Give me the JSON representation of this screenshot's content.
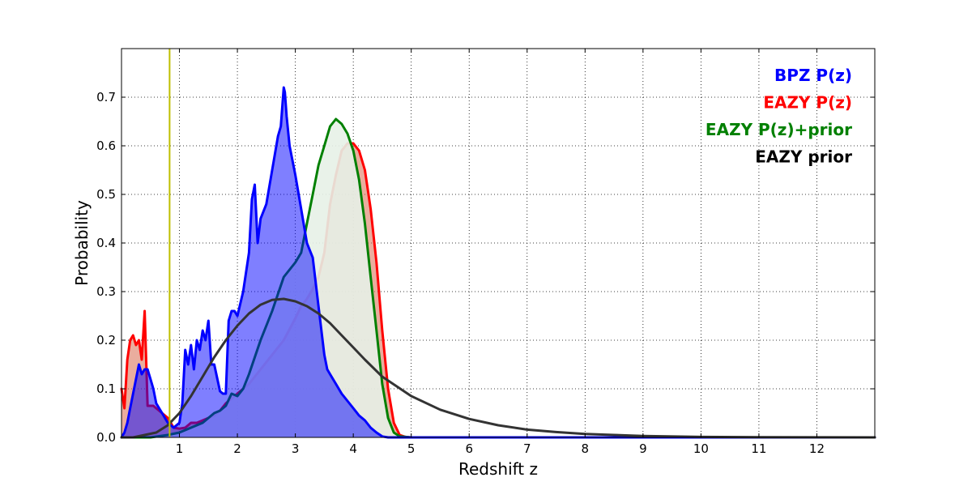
{
  "chart_data": {
    "type": "area",
    "xlabel": "Redshift z",
    "ylabel": "Probability",
    "xlim": [
      0,
      13
    ],
    "ylim": [
      0,
      0.8
    ],
    "xticks": [
      1,
      2,
      3,
      4,
      5,
      6,
      7,
      8,
      9,
      10,
      11,
      12
    ],
    "yticks": [
      0.0,
      0.1,
      0.2,
      0.3,
      0.4,
      0.5,
      0.6,
      0.7
    ],
    "ytick_labels": [
      "0.0",
      "0.1",
      "0.2",
      "0.3",
      "0.4",
      "0.5",
      "0.6",
      "0.7"
    ],
    "grid": true,
    "legend_position": "top-right",
    "reference_line": {
      "x": 0.83,
      "color": "#bfbf00"
    },
    "series": [
      {
        "name": "EAZY P(z)",
        "color": "#ff0000",
        "fill": "#d9694f",
        "fill_opacity": 0.55,
        "x": [
          0.0,
          0.05,
          0.1,
          0.15,
          0.2,
          0.25,
          0.3,
          0.35,
          0.4,
          0.45,
          0.5,
          0.55,
          0.6,
          0.7,
          0.8,
          0.9,
          1.0,
          1.1,
          1.2,
          1.3,
          1.4,
          1.5,
          1.6,
          1.7,
          1.8,
          1.9,
          2.0,
          2.1,
          2.2,
          2.4,
          2.6,
          2.8,
          3.0,
          3.1,
          3.2,
          3.3,
          3.4,
          3.5,
          3.6,
          3.7,
          3.8,
          3.9,
          4.0,
          4.1,
          4.2,
          4.3,
          4.4,
          4.5,
          4.6,
          4.7,
          4.8,
          4.9,
          5.0,
          6.0,
          8.0,
          10.0,
          13.0
        ],
        "y": [
          0.1,
          0.06,
          0.16,
          0.2,
          0.21,
          0.19,
          0.2,
          0.16,
          0.26,
          0.065,
          0.065,
          0.065,
          0.06,
          0.05,
          0.04,
          0.02,
          0.018,
          0.02,
          0.03,
          0.03,
          0.035,
          0.04,
          0.045,
          0.055,
          0.07,
          0.08,
          0.09,
          0.1,
          0.11,
          0.14,
          0.17,
          0.2,
          0.245,
          0.27,
          0.285,
          0.305,
          0.33,
          0.38,
          0.48,
          0.54,
          0.59,
          0.605,
          0.605,
          0.59,
          0.55,
          0.47,
          0.36,
          0.22,
          0.1,
          0.03,
          0.005,
          0.001,
          0.0,
          0.0,
          0.0,
          0.0,
          0.0
        ]
      },
      {
        "name": "EAZY P(z)+prior",
        "color": "#008000",
        "fill": "#e7f1e7",
        "fill_opacity": 0.9,
        "x": [
          0.0,
          0.5,
          0.8,
          1.0,
          1.2,
          1.4,
          1.5,
          1.6,
          1.7,
          1.8,
          1.9,
          2.0,
          2.1,
          2.2,
          2.4,
          2.6,
          2.8,
          3.0,
          3.1,
          3.2,
          3.3,
          3.4,
          3.5,
          3.6,
          3.7,
          3.8,
          3.9,
          4.0,
          4.1,
          4.2,
          4.3,
          4.4,
          4.5,
          4.6,
          4.7,
          4.8,
          5.0,
          6.0,
          8.0,
          10.0,
          13.0
        ],
        "y": [
          0.0,
          0.0,
          0.005,
          0.01,
          0.02,
          0.03,
          0.04,
          0.05,
          0.055,
          0.065,
          0.09,
          0.085,
          0.1,
          0.13,
          0.2,
          0.26,
          0.33,
          0.36,
          0.38,
          0.44,
          0.5,
          0.56,
          0.6,
          0.64,
          0.655,
          0.645,
          0.625,
          0.59,
          0.53,
          0.44,
          0.33,
          0.22,
          0.11,
          0.04,
          0.01,
          0.002,
          0.0,
          0.0,
          0.0,
          0.0,
          0.0
        ]
      },
      {
        "name": "BPZ P(z)",
        "color": "#0000ff",
        "fill": "#0000ff",
        "fill_opacity": 0.5,
        "x": [
          0.0,
          0.05,
          0.1,
          0.15,
          0.2,
          0.25,
          0.3,
          0.35,
          0.4,
          0.45,
          0.5,
          0.55,
          0.6,
          0.7,
          0.8,
          0.9,
          1.0,
          1.05,
          1.1,
          1.15,
          1.2,
          1.25,
          1.3,
          1.35,
          1.4,
          1.45,
          1.5,
          1.55,
          1.6,
          1.7,
          1.75,
          1.8,
          1.85,
          1.9,
          1.95,
          2.0,
          2.1,
          2.2,
          2.25,
          2.3,
          2.35,
          2.4,
          2.5,
          2.6,
          2.7,
          2.75,
          2.8,
          2.82,
          2.85,
          2.9,
          3.0,
          3.1,
          3.2,
          3.3,
          3.4,
          3.5,
          3.55,
          3.6,
          3.7,
          3.8,
          3.9,
          4.0,
          4.1,
          4.2,
          4.3,
          4.4,
          4.5,
          4.6,
          5.0,
          13.0
        ],
        "y": [
          0.0,
          0.01,
          0.03,
          0.06,
          0.09,
          0.12,
          0.15,
          0.13,
          0.14,
          0.14,
          0.12,
          0.1,
          0.07,
          0.05,
          0.03,
          0.02,
          0.03,
          0.07,
          0.18,
          0.15,
          0.19,
          0.14,
          0.2,
          0.18,
          0.22,
          0.2,
          0.24,
          0.15,
          0.15,
          0.095,
          0.09,
          0.09,
          0.24,
          0.26,
          0.26,
          0.25,
          0.3,
          0.38,
          0.49,
          0.52,
          0.4,
          0.45,
          0.48,
          0.55,
          0.62,
          0.64,
          0.72,
          0.71,
          0.66,
          0.6,
          0.54,
          0.47,
          0.4,
          0.37,
          0.27,
          0.17,
          0.14,
          0.13,
          0.11,
          0.09,
          0.075,
          0.06,
          0.045,
          0.035,
          0.02,
          0.01,
          0.002,
          0.0,
          0.0,
          0.0
        ]
      },
      {
        "name": "EAZY prior",
        "color": "#333333",
        "fill": "none",
        "fill_opacity": 0,
        "x": [
          0.0,
          0.2,
          0.4,
          0.6,
          0.8,
          1.0,
          1.2,
          1.4,
          1.6,
          1.8,
          2.0,
          2.2,
          2.4,
          2.6,
          2.8,
          3.0,
          3.2,
          3.4,
          3.6,
          3.8,
          4.0,
          4.2,
          4.5,
          5.0,
          5.5,
          6.0,
          6.5,
          7.0,
          7.5,
          8.0,
          8.5,
          9.0,
          10.0,
          11.0,
          12.0,
          13.0
        ],
        "y": [
          0.0,
          0.0,
          0.005,
          0.01,
          0.025,
          0.05,
          0.085,
          0.125,
          0.165,
          0.2,
          0.23,
          0.255,
          0.273,
          0.283,
          0.285,
          0.28,
          0.27,
          0.255,
          0.235,
          0.21,
          0.185,
          0.16,
          0.125,
          0.085,
          0.057,
          0.038,
          0.025,
          0.016,
          0.011,
          0.007,
          0.005,
          0.003,
          0.001,
          0.0005,
          0.0001,
          0.0
        ]
      }
    ],
    "legend_entries": [
      {
        "label": "BPZ P(z)",
        "color": "#0000ff"
      },
      {
        "label": "EAZY P(z)",
        "color": "#ff0000"
      },
      {
        "label": "EAZY P(z)+prior",
        "color": "#008000"
      },
      {
        "label": "EAZY prior",
        "color": "#000000"
      }
    ]
  }
}
